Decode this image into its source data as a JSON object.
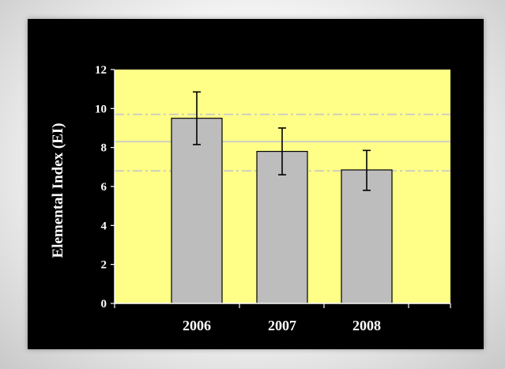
{
  "chart_data": {
    "type": "bar",
    "title": "",
    "xlabel": "",
    "ylabel": "Elemental Index (EI)",
    "categories": [
      "2006",
      "2007",
      "2008"
    ],
    "series": [
      {
        "values": [
          9.5,
          7.8,
          6.85
        ],
        "error_low": [
          8.15,
          6.6,
          5.8
        ],
        "error_high": [
          10.85,
          9.0,
          7.85
        ]
      }
    ],
    "ylim": [
      0,
      12
    ],
    "yticks": [
      "0",
      "2",
      "4",
      "6",
      "8",
      "10",
      "12"
    ],
    "reference_lines": [
      {
        "value": 8.3,
        "style": "solid"
      },
      {
        "value": 9.7,
        "style": "dashed"
      },
      {
        "value": 6.8,
        "style": "dashed"
      }
    ],
    "grid": false,
    "legend": "none",
    "colors": {
      "plot_background": "#ffff88",
      "bar_fill": "#bdbdbd",
      "bar_stroke": "#000000",
      "reference_line": "#c8c8c8",
      "background": "#000000",
      "text": "#ffffff"
    }
  }
}
